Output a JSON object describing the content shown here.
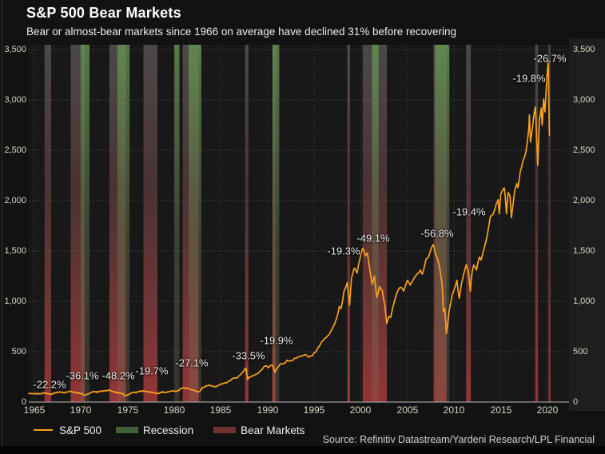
{
  "header": {
    "title": "S&P 500 Bear Markets",
    "subtitle": "Bear or almost-bear markets since 1966 on average have declined 31% before recovering"
  },
  "source": "Source: Refinitiv Datastream/Yardeni Research/LPL Financial",
  "legend": {
    "items": [
      {
        "label": "S&P 500",
        "swatch": "line",
        "color": "#f8a11e"
      },
      {
        "label": "Recession",
        "swatch": "box",
        "color": "#41603a"
      },
      {
        "label": "Bear Markets",
        "swatch": "box",
        "color": "#6e3333"
      }
    ]
  },
  "chart_data": {
    "type": "line",
    "title": "S&P 500 Bear Markets",
    "subtitle": "Bear or almost-bear markets since 1966 on average have declined 31% before recovering",
    "xlabel": "",
    "ylabel": "",
    "xlim": [
      1964.4,
      2022.3
    ],
    "ylim": [
      0,
      3500
    ],
    "x_ticks": [
      1965,
      1970,
      1975,
      1980,
      1985,
      1990,
      1995,
      2000,
      2005,
      2010,
      2015,
      2020
    ],
    "y_ticks": [
      0,
      500,
      1000,
      1500,
      2000,
      2500,
      3000,
      3500
    ],
    "grid": true,
    "legend_position": "bottom",
    "line_color": "#f8a11e",
    "recession_color": "#41603a",
    "bear_color": "#6e3333",
    "series": [
      {
        "name": "S&P 500",
        "color": "#f8a11e",
        "points": [
          [
            1964.4,
            84
          ],
          [
            1964.7,
            85
          ],
          [
            1965,
            86
          ],
          [
            1965.3,
            88
          ],
          [
            1965.6,
            85
          ],
          [
            1965.9,
            92
          ],
          [
            1966.1,
            93
          ],
          [
            1966.35,
            87
          ],
          [
            1966.6,
            80
          ],
          [
            1966.8,
            74
          ],
          [
            1967,
            82
          ],
          [
            1967.3,
            89
          ],
          [
            1967.6,
            94
          ],
          [
            1967.9,
            95
          ],
          [
            1968.2,
            90
          ],
          [
            1968.5,
            99
          ],
          [
            1968.9,
            108
          ],
          [
            1969.2,
            101
          ],
          [
            1969.5,
            97
          ],
          [
            1969.8,
            92
          ],
          [
            1970.1,
            88
          ],
          [
            1970.38,
            70
          ],
          [
            1970.6,
            76
          ],
          [
            1970.9,
            84
          ],
          [
            1971.2,
            100
          ],
          [
            1971.5,
            99
          ],
          [
            1971.75,
            94
          ],
          [
            1972,
            102
          ],
          [
            1972.4,
            107
          ],
          [
            1972.8,
            111
          ],
          [
            1973.02,
            120
          ],
          [
            1973.3,
            108
          ],
          [
            1973.6,
            104
          ],
          [
            1973.9,
            97
          ],
          [
            1974.2,
            94
          ],
          [
            1974.5,
            86
          ],
          [
            1974.78,
            63
          ],
          [
            1975,
            72
          ],
          [
            1975.3,
            83
          ],
          [
            1975.6,
            95
          ],
          [
            1975.9,
            90
          ],
          [
            1976.2,
            101
          ],
          [
            1976.5,
            104
          ],
          [
            1976.7,
            107
          ],
          [
            1977,
            103
          ],
          [
            1977.4,
            99
          ],
          [
            1977.8,
            95
          ],
          [
            1978.2,
            87
          ],
          [
            1978.5,
            97
          ],
          [
            1978.75,
            105
          ],
          [
            1979,
            99
          ],
          [
            1979.3,
            102
          ],
          [
            1979.6,
            108
          ],
          [
            1979.9,
            111
          ],
          [
            1980.2,
            102
          ],
          [
            1980.5,
            114
          ],
          [
            1980.88,
            140
          ],
          [
            1981.2,
            131
          ],
          [
            1981.5,
            133
          ],
          [
            1981.8,
            122
          ],
          [
            1982.1,
            117
          ],
          [
            1982.4,
            109
          ],
          [
            1982.62,
            102
          ],
          [
            1982.85,
            123
          ],
          [
            1983,
            145
          ],
          [
            1983.4,
            162
          ],
          [
            1983.8,
            170
          ],
          [
            1984.1,
            157
          ],
          [
            1984.45,
            150
          ],
          [
            1984.8,
            166
          ],
          [
            1985.2,
            180
          ],
          [
            1985.6,
            188
          ],
          [
            1986,
            211
          ],
          [
            1986.4,
            238
          ],
          [
            1986.7,
            236
          ],
          [
            1987,
            264
          ],
          [
            1987.3,
            292
          ],
          [
            1987.6,
            336
          ],
          [
            1987.72,
            328
          ],
          [
            1987.85,
            225
          ],
          [
            1988,
            247
          ],
          [
            1988.3,
            258
          ],
          [
            1988.7,
            272
          ],
          [
            1989,
            285
          ],
          [
            1989.4,
            320
          ],
          [
            1989.75,
            359
          ],
          [
            1990.1,
            340
          ],
          [
            1990.5,
            368
          ],
          [
            1990.8,
            295
          ],
          [
            1991.1,
            343
          ],
          [
            1991.4,
            380
          ],
          [
            1991.8,
            385
          ],
          [
            1992.1,
            417
          ],
          [
            1992.5,
            410
          ],
          [
            1992.9,
            435
          ],
          [
            1993.3,
            450
          ],
          [
            1993.7,
            460
          ],
          [
            1994.05,
            472
          ],
          [
            1994.4,
            445
          ],
          [
            1994.8,
            460
          ],
          [
            1995.2,
            500
          ],
          [
            1995.6,
            560
          ],
          [
            1996,
            615
          ],
          [
            1996.3,
            640
          ],
          [
            1996.6,
            670
          ],
          [
            1997,
            740
          ],
          [
            1997.4,
            830
          ],
          [
            1997.7,
            950
          ],
          [
            1997.9,
            930
          ],
          [
            1998.2,
            1100
          ],
          [
            1998.55,
            1186
          ],
          [
            1998.8,
            960
          ],
          [
            1999,
            1230
          ],
          [
            1999.3,
            1330
          ],
          [
            1999.6,
            1280
          ],
          [
            1999.9,
            1420
          ],
          [
            2000.2,
            1527
          ],
          [
            2000.5,
            1450
          ],
          [
            2000.7,
            1480
          ],
          [
            2000.95,
            1330
          ],
          [
            2001.2,
            1170
          ],
          [
            2001.45,
            1250
          ],
          [
            2001.73,
            1040
          ],
          [
            2002,
            1148
          ],
          [
            2002.3,
            1110
          ],
          [
            2002.6,
            950
          ],
          [
            2002.78,
            780
          ],
          [
            2003,
            850
          ],
          [
            2003.2,
            840
          ],
          [
            2003.6,
            1000
          ],
          [
            2004,
            1110
          ],
          [
            2004.3,
            1140
          ],
          [
            2004.6,
            1100
          ],
          [
            2005,
            1210
          ],
          [
            2005.3,
            1160
          ],
          [
            2005.7,
            1230
          ],
          [
            2006,
            1270
          ],
          [
            2006.4,
            1310
          ],
          [
            2006.6,
            1270
          ],
          [
            2007,
            1420
          ],
          [
            2007.3,
            1450
          ],
          [
            2007.55,
            1530
          ],
          [
            2007.78,
            1565
          ],
          [
            2008,
            1470
          ],
          [
            2008.3,
            1400
          ],
          [
            2008.55,
            1280
          ],
          [
            2008.72,
            1160
          ],
          [
            2008.85,
            900
          ],
          [
            2009,
            930
          ],
          [
            2009.18,
            680
          ],
          [
            2009.5,
            920
          ],
          [
            2009.8,
            1070
          ],
          [
            2010,
            1115
          ],
          [
            2010.3,
            1210
          ],
          [
            2010.55,
            1030
          ],
          [
            2010.8,
            1180
          ],
          [
            2011,
            1258
          ],
          [
            2011.3,
            1363
          ],
          [
            2011.55,
            1280
          ],
          [
            2011.75,
            1100
          ],
          [
            2011.9,
            1260
          ],
          [
            2012.1,
            1360
          ],
          [
            2012.4,
            1310
          ],
          [
            2012.7,
            1440
          ],
          [
            2012.9,
            1410
          ],
          [
            2013.2,
            1520
          ],
          [
            2013.5,
            1630
          ],
          [
            2013.9,
            1848
          ],
          [
            2014.2,
            1870
          ],
          [
            2014.5,
            1960
          ],
          [
            2014.72,
            2010
          ],
          [
            2014.85,
            1870
          ],
          [
            2015,
            2059
          ],
          [
            2015.2,
            2100
          ],
          [
            2015.4,
            2125
          ],
          [
            2015.62,
            1870
          ],
          [
            2015.8,
            2080
          ],
          [
            2016,
            2040
          ],
          [
            2016.15,
            1830
          ],
          [
            2016.5,
            2100
          ],
          [
            2016.72,
            2170
          ],
          [
            2016.85,
            2130
          ],
          [
            2017.1,
            2290
          ],
          [
            2017.4,
            2400
          ],
          [
            2017.7,
            2480
          ],
          [
            2018,
            2700
          ],
          [
            2018.08,
            2850
          ],
          [
            2018.2,
            2580
          ],
          [
            2018.4,
            2720
          ],
          [
            2018.6,
            2870
          ],
          [
            2018.72,
            2930
          ],
          [
            2018.85,
            2630
          ],
          [
            2018.98,
            2351
          ],
          [
            2019.15,
            2800
          ],
          [
            2019.35,
            2920
          ],
          [
            2019.45,
            2750
          ],
          [
            2019.6,
            3010
          ],
          [
            2019.75,
            2880
          ],
          [
            2019.95,
            3230
          ],
          [
            2020.1,
            3386
          ],
          [
            2020.17,
            2950
          ],
          [
            2020.22,
            2650
          ]
        ]
      }
    ],
    "bear_markets": [
      {
        "start": 1966.1,
        "end": 1966.8,
        "decline": "-22.2%"
      },
      {
        "start": 1968.9,
        "end": 1970.4,
        "decline": "-36.1%"
      },
      {
        "start": 1973.05,
        "end": 1974.8,
        "decline": "-48.2%"
      },
      {
        "start": 1976.7,
        "end": 1978.2,
        "decline": "-19.7%"
      },
      {
        "start": 1980.9,
        "end": 1982.6,
        "decline": "-27.1%"
      },
      {
        "start": 1987.6,
        "end": 1987.95,
        "decline": "-33.5%"
      },
      {
        "start": 1990.5,
        "end": 1990.85,
        "decline": "-19.9%"
      },
      {
        "start": 1998.55,
        "end": 1998.85,
        "decline": "-19.3%"
      },
      {
        "start": 2000.2,
        "end": 2002.8,
        "decline": "-49.1%"
      },
      {
        "start": 2007.8,
        "end": 2009.2,
        "decline": "-56.8%"
      },
      {
        "start": 2011.3,
        "end": 2011.8,
        "decline": "-19.4%"
      },
      {
        "start": 2018.7,
        "end": 2019.0,
        "decline": "-19.8%"
      },
      {
        "start": 2020.12,
        "end": 2020.3,
        "decline": "-26.7%"
      }
    ],
    "recessions": [
      {
        "start": 1969.95,
        "end": 1970.9
      },
      {
        "start": 1973.9,
        "end": 1975.2
      },
      {
        "start": 1980.0,
        "end": 1980.55
      },
      {
        "start": 1981.55,
        "end": 1982.9
      },
      {
        "start": 1990.55,
        "end": 1991.25
      },
      {
        "start": 2001.2,
        "end": 2001.9
      },
      {
        "start": 2007.95,
        "end": 2009.5
      }
    ],
    "annotations": [
      {
        "text": "-22.2%",
        "year": 1966.6,
        "value": 175
      },
      {
        "text": "-36.1%",
        "year": 1970.1,
        "value": 262
      },
      {
        "text": "-48.2%",
        "year": 1974.0,
        "value": 262
      },
      {
        "text": "-19.7%",
        "year": 1977.6,
        "value": 310
      },
      {
        "text": "-27.1%",
        "year": 1981.9,
        "value": 389
      },
      {
        "text": "-33.5%",
        "year": 1988.0,
        "value": 460
      },
      {
        "text": "-19.9%",
        "year": 1991.0,
        "value": 611
      },
      {
        "text": "-19.3%",
        "year": 1998.2,
        "value": 1503
      },
      {
        "text": "-49.1%",
        "year": 2001.3,
        "value": 1627
      },
      {
        "text": "-56.8%",
        "year": 2008.2,
        "value": 1675
      },
      {
        "text": "-19.4%",
        "year": 2011.6,
        "value": 1889
      },
      {
        "text": "-19.8%",
        "year": 2018.0,
        "value": 3214
      },
      {
        "text": "-26.7%",
        "year": 2020.3,
        "value": 3413
      }
    ]
  }
}
